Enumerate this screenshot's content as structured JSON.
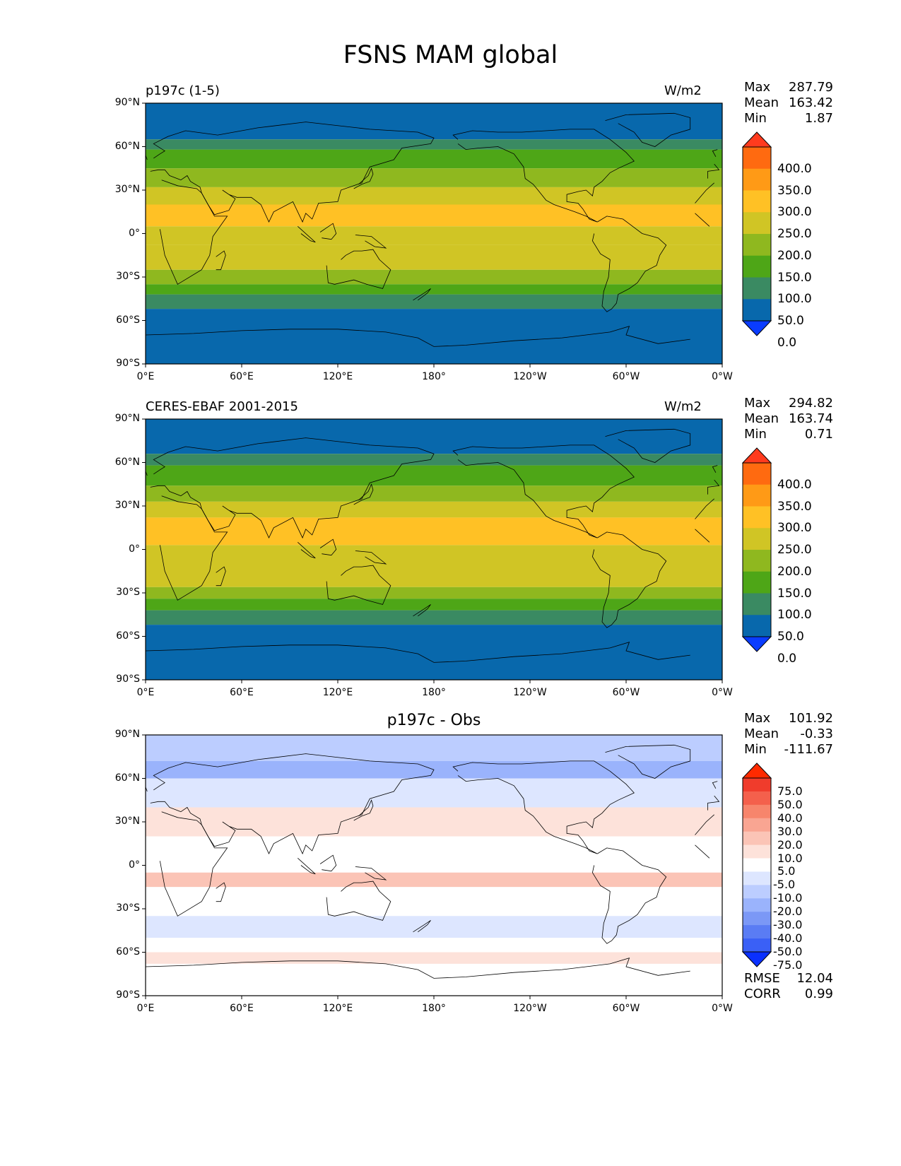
{
  "figure": {
    "title": "FSNS MAM global"
  },
  "chart_data": [
    {
      "type": "heatmap",
      "title": "p197c (1-5)",
      "units": "W/m2",
      "stats": [
        {
          "label": "Max",
          "value": "287.79"
        },
        {
          "label": "Mean",
          "value": "163.42"
        },
        {
          "label": "Min",
          "value": "1.87"
        }
      ],
      "xlim": [
        0,
        360
      ],
      "ylim": [
        -90,
        90
      ],
      "x_ticks": [
        "0°E",
        "60°E",
        "120°E",
        "180°",
        "120°W",
        "60°W",
        "0°W"
      ],
      "y_ticks": [
        "90°N",
        "60°N",
        "30°N",
        "0°",
        "30°S",
        "60°S",
        "90°S"
      ],
      "colorbar": {
        "labels": [
          "400.0",
          "350.0",
          "300.0",
          "250.0",
          "200.0",
          "150.0",
          "100.0",
          "50.0",
          "0.0"
        ],
        "colors": [
          "#ff3b1e",
          "#ff6a10",
          "#ff9a16",
          "#ffc125",
          "#d0c525",
          "#8fb81f",
          "#4ea617",
          "#3a8a62",
          "#0868ac",
          "#0a3cff"
        ]
      },
      "zonal_bands": [
        {
          "lat": [
            65,
            90
          ],
          "color": "#0868ac"
        },
        {
          "lat": [
            58,
            65
          ],
          "color": "#3a8a62"
        },
        {
          "lat": [
            45,
            58
          ],
          "color": "#4ea617"
        },
        {
          "lat": [
            32,
            45
          ],
          "color": "#8fb81f"
        },
        {
          "lat": [
            20,
            32
          ],
          "color": "#d0c525"
        },
        {
          "lat": [
            5,
            20
          ],
          "color": "#ffc125"
        },
        {
          "lat": [
            -8,
            5
          ],
          "color": "#d0c525"
        },
        {
          "lat": [
            -25,
            -8
          ],
          "color": "#d0c525"
        },
        {
          "lat": [
            -35,
            -25
          ],
          "color": "#8fb81f"
        },
        {
          "lat": [
            -42,
            -35
          ],
          "color": "#4ea617"
        },
        {
          "lat": [
            -52,
            -42
          ],
          "color": "#3a8a62"
        },
        {
          "lat": [
            -90,
            -52
          ],
          "color": "#0868ac"
        }
      ]
    },
    {
      "type": "heatmap",
      "title": "CERES-EBAF 2001-2015",
      "units": "W/m2",
      "stats": [
        {
          "label": "Max",
          "value": "294.82"
        },
        {
          "label": "Mean",
          "value": "163.74"
        },
        {
          "label": "Min",
          "value": "0.71"
        }
      ],
      "xlim": [
        0,
        360
      ],
      "ylim": [
        -90,
        90
      ],
      "x_ticks": [
        "0°E",
        "60°E",
        "120°E",
        "180°",
        "120°W",
        "60°W",
        "0°W"
      ],
      "y_ticks": [
        "90°N",
        "60°N",
        "30°N",
        "0°",
        "30°S",
        "60°S",
        "90°S"
      ],
      "colorbar": {
        "labels": [
          "400.0",
          "350.0",
          "300.0",
          "250.0",
          "200.0",
          "150.0",
          "100.0",
          "50.0",
          "0.0"
        ],
        "colors": [
          "#ff3b1e",
          "#ff6a10",
          "#ff9a16",
          "#ffc125",
          "#d0c525",
          "#8fb81f",
          "#4ea617",
          "#3a8a62",
          "#0868ac",
          "#0a3cff"
        ]
      },
      "zonal_bands": [
        {
          "lat": [
            66,
            90
          ],
          "color": "#0868ac"
        },
        {
          "lat": [
            58,
            66
          ],
          "color": "#3a8a62"
        },
        {
          "lat": [
            44,
            58
          ],
          "color": "#4ea617"
        },
        {
          "lat": [
            33,
            44
          ],
          "color": "#8fb81f"
        },
        {
          "lat": [
            22,
            33
          ],
          "color": "#d0c525"
        },
        {
          "lat": [
            3,
            22
          ],
          "color": "#ffc125"
        },
        {
          "lat": [
            -10,
            3
          ],
          "color": "#d0c525"
        },
        {
          "lat": [
            -26,
            -10
          ],
          "color": "#d0c525"
        },
        {
          "lat": [
            -34,
            -26
          ],
          "color": "#8fb81f"
        },
        {
          "lat": [
            -42,
            -34
          ],
          "color": "#4ea617"
        },
        {
          "lat": [
            -52,
            -42
          ],
          "color": "#3a8a62"
        },
        {
          "lat": [
            -90,
            -52
          ],
          "color": "#0868ac"
        }
      ]
    },
    {
      "type": "heatmap",
      "title": "p197c - Obs",
      "stats": [
        {
          "label": "Max",
          "value": "101.92"
        },
        {
          "label": "Mean",
          "value": "-0.33"
        },
        {
          "label": "Min",
          "value": "-111.67"
        }
      ],
      "extra_stats": [
        {
          "label": "RMSE",
          "value": "12.04"
        },
        {
          "label": "CORR",
          "value": "0.99"
        }
      ],
      "xlim": [
        0,
        360
      ],
      "ylim": [
        -90,
        90
      ],
      "x_ticks": [
        "0°E",
        "60°E",
        "120°E",
        "180°",
        "120°W",
        "60°W",
        "0°W"
      ],
      "y_ticks": [
        "90°N",
        "60°N",
        "30°N",
        "0°",
        "30°S",
        "60°S",
        "90°S"
      ],
      "colorbar": {
        "labels": [
          "75.0",
          "50.0",
          "40.0",
          "30.0",
          "20.0",
          "10.0",
          "5.0",
          "-5.0",
          "-10.0",
          "-20.0",
          "-30.0",
          "-40.0",
          "-50.0",
          "-75.0"
        ],
        "colors": [
          "#ff2a00",
          "#f03c2c",
          "#f4604c",
          "#f7856c",
          "#f9a592",
          "#fbc4b6",
          "#fde2da",
          "#ffffff",
          "#dde6ff",
          "#bccdff",
          "#9ab3fc",
          "#7b98f6",
          "#5a7cf4",
          "#3a60f6",
          "#0a30ff"
        ]
      },
      "zonal_bands": [
        {
          "lat": [
            72,
            90
          ],
          "color": "#bccdff"
        },
        {
          "lat": [
            60,
            72
          ],
          "color": "#9ab3fc"
        },
        {
          "lat": [
            40,
            60
          ],
          "color": "#dde6ff"
        },
        {
          "lat": [
            20,
            40
          ],
          "color": "#fde2da"
        },
        {
          "lat": [
            -5,
            20
          ],
          "color": "#ffffff"
        },
        {
          "lat": [
            -15,
            -5
          ],
          "color": "#fbc4b6"
        },
        {
          "lat": [
            -35,
            -15
          ],
          "color": "#ffffff"
        },
        {
          "lat": [
            -50,
            -35
          ],
          "color": "#dde6ff"
        },
        {
          "lat": [
            -60,
            -50
          ],
          "color": "#ffffff"
        },
        {
          "lat": [
            -68,
            -60
          ],
          "color": "#fde2da"
        },
        {
          "lat": [
            -90,
            -68
          ],
          "color": "#ffffff"
        }
      ]
    }
  ]
}
